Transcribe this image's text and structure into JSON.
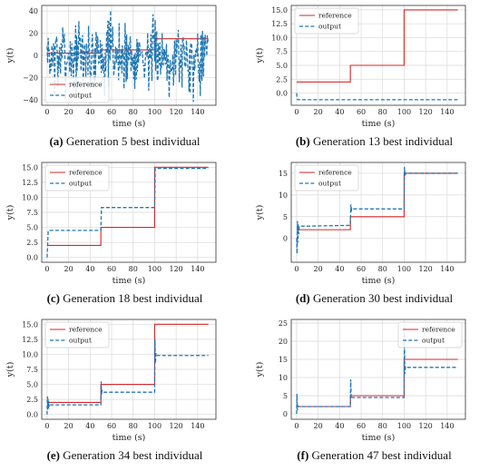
{
  "colors": {
    "reference": "#d62728",
    "output": "#1f77b4",
    "grid": "#d9d9d9",
    "axis": "#333333"
  },
  "chart_data": [
    {
      "type": "line",
      "caption_letter": "(a)",
      "caption_text": " Generation 5 best individual",
      "xlabel": "time (s)",
      "ylabel": "y(t)",
      "xlim": [
        -5,
        157
      ],
      "ylim": [
        -45,
        45
      ],
      "xticks": [
        0,
        20,
        40,
        60,
        80,
        100,
        120,
        140
      ],
      "yticks": [
        -40,
        -20,
        0,
        20,
        40
      ],
      "ytick_labels": [
        "−40",
        "−20",
        "0",
        "20",
        "40"
      ],
      "legend": {
        "position": "lower-left",
        "labels": [
          "reference",
          "output"
        ]
      },
      "series": [
        {
          "name": "reference",
          "style": "solid",
          "x": [
            0,
            50,
            50,
            100,
            100,
            150
          ],
          "y": [
            2,
            2,
            5,
            5,
            15,
            15
          ]
        },
        {
          "name": "output",
          "style": "dashed",
          "noise": {
            "seed": 7,
            "amplitude": 15,
            "min": -42,
            "max": 43
          }
        }
      ]
    },
    {
      "type": "line",
      "caption_letter": "(b)",
      "caption_text": " Generation 13 best individual",
      "xlabel": "time (s)",
      "ylabel": "y(t)",
      "xlim": [
        -5,
        157
      ],
      "ylim": [
        -2.2,
        15.8
      ],
      "xticks": [
        0,
        20,
        40,
        60,
        80,
        100,
        120,
        140
      ],
      "yticks": [
        0,
        2.5,
        5,
        7.5,
        10,
        12.5,
        15
      ],
      "ytick_labels": [
        "0.0",
        "2.5",
        "5.0",
        "7.5",
        "10.0",
        "12.5",
        "15.0"
      ],
      "legend": {
        "position": "top-left",
        "labels": [
          "reference",
          "output"
        ]
      },
      "series": [
        {
          "name": "reference",
          "style": "solid",
          "x": [
            0,
            50,
            50,
            100,
            100,
            150
          ],
          "y": [
            2,
            2,
            5,
            5,
            15,
            15
          ]
        },
        {
          "name": "output",
          "style": "dashed",
          "x": [
            0,
            0.5,
            1,
            150
          ],
          "y": [
            0,
            -1.0,
            -1.2,
            -1.2
          ]
        }
      ]
    },
    {
      "type": "line",
      "caption_letter": "(c)",
      "caption_text": " Generation 18 best individual",
      "xlabel": "time (s)",
      "ylabel": "y(t)",
      "xlim": [
        -5,
        157
      ],
      "ylim": [
        -0.8,
        15.8
      ],
      "xticks": [
        0,
        20,
        40,
        60,
        80,
        100,
        120,
        140
      ],
      "yticks": [
        0,
        2.5,
        5,
        7.5,
        10,
        12.5,
        15
      ],
      "ytick_labels": [
        "0.0",
        "2.5",
        "5.0",
        "7.5",
        "10.0",
        "12.5",
        "15.0"
      ],
      "legend": {
        "position": "top-left",
        "labels": [
          "reference",
          "output"
        ]
      },
      "series": [
        {
          "name": "reference",
          "style": "solid",
          "x": [
            0,
            50,
            50,
            100,
            100,
            150
          ],
          "y": [
            2,
            2,
            5,
            5,
            15,
            15
          ]
        },
        {
          "name": "output",
          "style": "dashed",
          "x": [
            0,
            1,
            1.5,
            50,
            50.5,
            100,
            100.5,
            150
          ],
          "y": [
            0,
            4.3,
            4.5,
            4.5,
            8.3,
            8.3,
            14.8,
            14.8
          ]
        }
      ]
    },
    {
      "type": "line",
      "caption_letter": "(d)",
      "caption_text": " Generation 30 best individual",
      "xlabel": "time (s)",
      "ylabel": "y(t)",
      "xlim": [
        -5,
        157
      ],
      "ylim": [
        -5.5,
        17.5
      ],
      "xticks": [
        0,
        20,
        40,
        60,
        80,
        100,
        120,
        140
      ],
      "yticks": [
        0,
        5,
        10,
        15
      ],
      "ytick_labels": [
        "0",
        "5",
        "10",
        "15"
      ],
      "legend": {
        "position": "top-left",
        "labels": [
          "reference",
          "output"
        ]
      },
      "series": [
        {
          "name": "reference",
          "style": "solid",
          "x": [
            0,
            50,
            50,
            100,
            100,
            150
          ],
          "y": [
            2,
            2,
            5,
            5,
            15,
            15
          ]
        },
        {
          "name": "output",
          "style": "dashed",
          "x": [
            0,
            0.4,
            0.8,
            1.2,
            1.6,
            2.0,
            2.4,
            3.0,
            50,
            50.4,
            50.8,
            51.2,
            52,
            100,
            100.3,
            100.8,
            101.5,
            150
          ],
          "y": [
            0,
            -3.5,
            4,
            -1,
            3.2,
            1,
            2.8,
            2.8,
            3,
            7.8,
            6,
            7,
            6.8,
            6.8,
            16.5,
            14.5,
            15,
            15
          ]
        }
      ]
    },
    {
      "type": "line",
      "caption_letter": "(e)",
      "caption_text": " Generation 34 best individual",
      "xlabel": "time (s)",
      "ylabel": "y(t)",
      "xlim": [
        -5,
        157
      ],
      "ylim": [
        -0.8,
        15.8
      ],
      "xticks": [
        0,
        20,
        40,
        60,
        80,
        100,
        120,
        140
      ],
      "yticks": [
        0,
        2.5,
        5,
        7.5,
        10,
        12.5,
        15
      ],
      "ytick_labels": [
        "0.0",
        "2.5",
        "5.0",
        "7.5",
        "10.0",
        "12.5",
        "15.0"
      ],
      "legend": {
        "position": "top-left",
        "labels": [
          "reference",
          "output"
        ]
      },
      "series": [
        {
          "name": "reference",
          "style": "solid",
          "x": [
            0,
            50,
            50,
            100,
            100,
            150
          ],
          "y": [
            2,
            2,
            5,
            5,
            15,
            15
          ]
        },
        {
          "name": "output",
          "style": "dashed",
          "x": [
            0,
            0.3,
            0.6,
            0.9,
            1.2,
            1.5,
            1.8,
            2.2,
            3,
            50,
            50.3,
            50.6,
            51,
            52,
            100,
            100.3,
            100.7,
            101.2,
            102,
            150
          ],
          "y": [
            0,
            3,
            0.8,
            2.6,
            1.0,
            2.2,
            1.3,
            1.7,
            1.6,
            1.6,
            5.5,
            3.2,
            4.0,
            3.7,
            3.7,
            12.5,
            8.5,
            10.2,
            9.8,
            9.8
          ]
        }
      ]
    },
    {
      "type": "line",
      "caption_letter": "(f)",
      "caption_text": " Generation 47 best individual",
      "xlabel": "time (s)",
      "ylabel": "y(t)",
      "xlim": [
        -5,
        157
      ],
      "ylim": [
        -1.5,
        26
      ],
      "xticks": [
        0,
        20,
        40,
        60,
        80,
        100,
        120,
        140
      ],
      "yticks": [
        0,
        5,
        10,
        15,
        20,
        25
      ],
      "ytick_labels": [
        "0",
        "5",
        "10",
        "15",
        "20",
        "25"
      ],
      "legend": {
        "position": "top-right",
        "labels": [
          "reference",
          "output"
        ]
      },
      "series": [
        {
          "name": "reference",
          "style": "solid",
          "x": [
            0,
            50,
            50,
            100,
            100,
            150
          ],
          "y": [
            2,
            2,
            5,
            5,
            15,
            15
          ]
        },
        {
          "name": "output",
          "style": "dashed",
          "x": [
            0,
            0.3,
            0.7,
            1.2,
            2,
            50,
            50.3,
            50.8,
            51.5,
            100,
            100.2,
            100.6,
            101.2,
            102,
            150
          ],
          "y": [
            0,
            5.5,
            1,
            2.2,
            2,
            2,
            9.5,
            4.2,
            4.5,
            4.5,
            24,
            11,
            13,
            12.8,
            12.8
          ]
        }
      ]
    }
  ]
}
